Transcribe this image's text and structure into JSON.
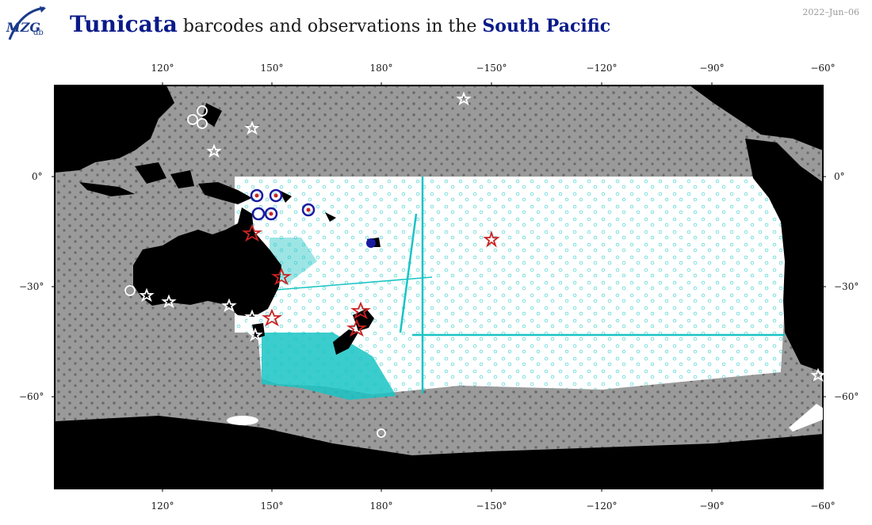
{
  "logo_text": "MZGdb",
  "title": {
    "taxon": "Tunicata",
    "middle": "barcodes and observations in the",
    "region": "South Pacific"
  },
  "date": "2022–Jun–06",
  "axes": {
    "lon_ticks": [
      "120°",
      "150°",
      "180°",
      "−150°",
      "−120°",
      "−90°",
      "−60°"
    ],
    "lat_ticks": [
      "0°",
      "−30°",
      "−60°"
    ]
  },
  "colors": {
    "land": "#000000",
    "ocean_outside": "#9a9a9a",
    "ocean_region": "#ffffff",
    "observations_outside": "#6a6a6a",
    "observations_region": "#19c4c4",
    "barcode_star": "#cc2222",
    "barcode_circle": "#1a1aa0"
  }
}
